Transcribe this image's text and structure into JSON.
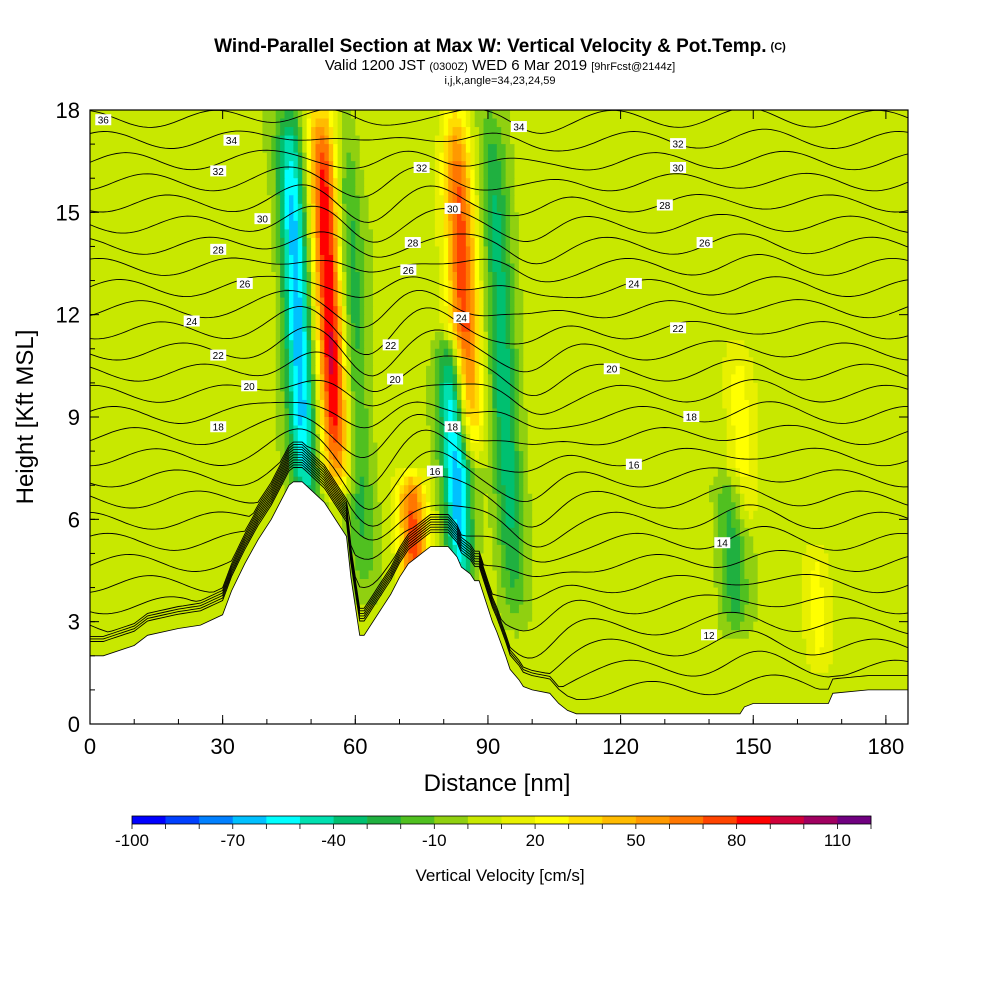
{
  "header": {
    "title": "Wind-Parallel Section at Max W: Vertical Velocity & Pot.Temp.",
    "copyright": "(C)",
    "valid_prefix": "Valid 1200 JST",
    "valid_utc": "(0300Z)",
    "valid_date": "WED 6 Mar 2019",
    "forecast_info": "[9hrFcst@2144z]",
    "params": "i,j,k,angle=34,23,24,59"
  },
  "chart_data": {
    "type": "heatmap",
    "xlabel": "Distance [nm]",
    "ylabel": "Height [Kft MSL]",
    "xlim": [
      0,
      185
    ],
    "ylim": [
      0,
      18
    ],
    "x_ticks": [
      0,
      30,
      60,
      90,
      120,
      150,
      180
    ],
    "y_ticks": [
      0,
      3,
      6,
      9,
      12,
      15,
      18
    ],
    "colorbar": {
      "title": "Vertical Velocity [cm/s]",
      "levels": [
        -100,
        -90,
        -80,
        -70,
        -60,
        -50,
        -40,
        -30,
        -20,
        -10,
        0,
        10,
        20,
        30,
        40,
        50,
        60,
        70,
        80,
        90,
        100,
        110,
        120
      ],
      "labels": [
        "-100",
        "-70",
        "-40",
        "-10",
        "20",
        "50",
        "80",
        "110"
      ],
      "colors": [
        "#0000ff",
        "#0040ff",
        "#0080ff",
        "#00c0ff",
        "#00ffff",
        "#00e0b0",
        "#00c070",
        "#20b040",
        "#50c020",
        "#90d010",
        "#c8e800",
        "#e8f000",
        "#ffff00",
        "#ffdd00",
        "#ffbb00",
        "#ff9900",
        "#ff7700",
        "#ff4400",
        "#ff0000",
        "#d0003a",
        "#a00060",
        "#700080"
      ]
    },
    "vertical_velocity_features": [
      {
        "x": 49,
        "y_range": [
          6,
          18
        ],
        "kind": "downdraft",
        "peak_cm_s": -70
      },
      {
        "x": 56,
        "y_range": [
          7,
          18
        ],
        "kind": "updraft",
        "peak_cm_s": 90
      },
      {
        "x": 62,
        "y_range": [
          4,
          18
        ],
        "kind": "downdraft",
        "peak_cm_s": -30
      },
      {
        "x": 74,
        "y_range": [
          3,
          7
        ],
        "kind": "updraft",
        "peak_cm_s": 70
      },
      {
        "x": 84,
        "y_range": [
          4,
          11
        ],
        "kind": "downdraft",
        "peak_cm_s": -70
      },
      {
        "x": 86,
        "y_range": [
          8,
          18
        ],
        "kind": "updraft",
        "peak_cm_s": 70
      },
      {
        "x": 96,
        "y_range": [
          3,
          18
        ],
        "kind": "downdraft",
        "peak_cm_s": -40
      },
      {
        "x": 146,
        "y_range": [
          3,
          7
        ],
        "kind": "downdraft",
        "peak_cm_s": -30
      },
      {
        "x": 148,
        "y_range": [
          6,
          11
        ],
        "kind": "updraft",
        "peak_cm_s": 20
      },
      {
        "x": 165,
        "y_range": [
          2,
          5
        ],
        "kind": "updraft",
        "peak_cm_s": 20
      }
    ],
    "terrain_profile": {
      "x": [
        0,
        3,
        10,
        13,
        20,
        25,
        30,
        32,
        35,
        38,
        41,
        43,
        45,
        46,
        48,
        53,
        55,
        58,
        59,
        61,
        62,
        68,
        68,
        70,
        72,
        74,
        75,
        77,
        81,
        83,
        84,
        86,
        87,
        88,
        91,
        92,
        94,
        95,
        97,
        98,
        100,
        104,
        106,
        108,
        110,
        111,
        147,
        148,
        150,
        152,
        167,
        168,
        176,
        177,
        185
      ],
      "y": [
        2,
        2,
        2.3,
        2.6,
        2.8,
        2.9,
        3.2,
        3.9,
        4.7,
        5.4,
        6.0,
        6.5,
        7.0,
        7.1,
        7.1,
        6.5,
        6.1,
        5.5,
        4.3,
        2.6,
        2.6,
        3.8,
        3.8,
        4.3,
        4.7,
        4.9,
        5.0,
        5.2,
        5.2,
        4.9,
        4.6,
        4.4,
        4.2,
        4.2,
        3.0,
        2.7,
        2.0,
        1.6,
        1.3,
        1.1,
        1.0,
        0.9,
        0.6,
        0.4,
        0.3,
        0.3,
        0.3,
        0.5,
        0.6,
        0.6,
        0.6,
        0.9,
        1.0,
        1.0,
        1.0
      ]
    },
    "potential_temperature_labels": [
      {
        "text": "36",
        "x": 3,
        "y": 17.7
      },
      {
        "text": "34",
        "x": 32,
        "y": 17.1
      },
      {
        "text": "32",
        "x": 29,
        "y": 16.2
      },
      {
        "text": "30",
        "x": 39,
        "y": 14.8
      },
      {
        "text": "28",
        "x": 29,
        "y": 13.9
      },
      {
        "text": "26",
        "x": 35,
        "y": 12.9
      },
      {
        "text": "24",
        "x": 23,
        "y": 11.8
      },
      {
        "text": "22",
        "x": 29,
        "y": 10.8
      },
      {
        "text": "20",
        "x": 36,
        "y": 9.9
      },
      {
        "text": "18",
        "x": 29,
        "y": 8.7
      },
      {
        "text": "34",
        "x": 97,
        "y": 17.5
      },
      {
        "text": "32",
        "x": 75,
        "y": 16.3
      },
      {
        "text": "30",
        "x": 82,
        "y": 15.1
      },
      {
        "text": "28",
        "x": 73,
        "y": 14.1
      },
      {
        "text": "26",
        "x": 72,
        "y": 13.3
      },
      {
        "text": "24",
        "x": 84,
        "y": 11.9
      },
      {
        "text": "22",
        "x": 68,
        "y": 11.1
      },
      {
        "text": "20",
        "x": 69,
        "y": 10.1
      },
      {
        "text": "18",
        "x": 82,
        "y": 8.7
      },
      {
        "text": "16",
        "x": 78,
        "y": 7.4
      },
      {
        "text": "32",
        "x": 133,
        "y": 17.0
      },
      {
        "text": "30",
        "x": 133,
        "y": 16.3
      },
      {
        "text": "28",
        "x": 130,
        "y": 15.2
      },
      {
        "text": "26",
        "x": 139,
        "y": 14.1
      },
      {
        "text": "24",
        "x": 123,
        "y": 12.9
      },
      {
        "text": "22",
        "x": 133,
        "y": 11.6
      },
      {
        "text": "20",
        "x": 118,
        "y": 10.4
      },
      {
        "text": "18",
        "x": 136,
        "y": 9.0
      },
      {
        "text": "16",
        "x": 123,
        "y": 7.6
      },
      {
        "text": "14",
        "x": 143,
        "y": 5.3
      },
      {
        "text": "12",
        "x": 140,
        "y": 2.6
      }
    ],
    "grid": false
  }
}
